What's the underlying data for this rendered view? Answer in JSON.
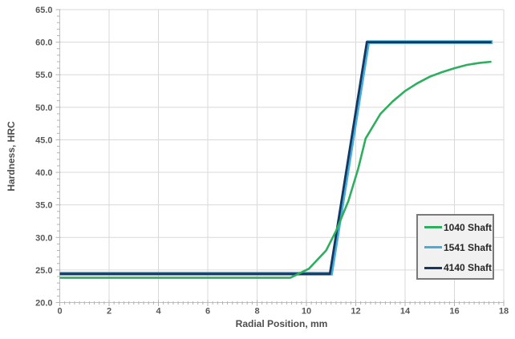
{
  "chart_data": {
    "type": "line",
    "title": "",
    "xlabel": "Radial Position, mm",
    "ylabel": "Hardness, HRC",
    "xlim": [
      0,
      18
    ],
    "ylim": [
      20,
      65
    ],
    "x_tick_step": 2,
    "x_minor_step": 0.2,
    "y_tick_step": 5,
    "y_minor_step": 1,
    "x_tick_labels": [
      "0",
      "2",
      "4",
      "6",
      "8",
      "10",
      "12",
      "14",
      "16",
      "18"
    ],
    "y_tick_labels": [
      "20.0",
      "25.0",
      "30.0",
      "35.0",
      "40.0",
      "45.0",
      "50.0",
      "55.0",
      "60.0",
      "65.0"
    ],
    "grid": true,
    "legend_position": "right-middle",
    "colors": {
      "gridline": "#d9d9d9",
      "axis": "#bfbfbf",
      "tick": "#b3b3b3",
      "tick_label": "#595959",
      "axis_title": "#4d4d4d",
      "legend_bg": "#f1f1f1",
      "legend_border": "#7a7a7a",
      "legend_text": "#262626"
    },
    "series": [
      {
        "name": "1040 Shaft",
        "color": "#2EAE5F",
        "points": [
          [
            0,
            23.8
          ],
          [
            9.35,
            23.8
          ],
          [
            10.1,
            25.2
          ],
          [
            10.8,
            28.0
          ],
          [
            11.2,
            31.0
          ],
          [
            11.7,
            35.6
          ],
          [
            12.1,
            40.6
          ],
          [
            12.4,
            45.2
          ],
          [
            13.0,
            49.0
          ],
          [
            13.5,
            50.9
          ],
          [
            14.0,
            52.5
          ],
          [
            14.5,
            53.7
          ],
          [
            15.0,
            54.7
          ],
          [
            15.5,
            55.4
          ],
          [
            16.0,
            56.0
          ],
          [
            16.5,
            56.5
          ],
          [
            17.0,
            56.8
          ],
          [
            17.5,
            57.0
          ]
        ]
      },
      {
        "name": "1541 Shaft",
        "color": "#44AEDC",
        "points": [
          [
            0,
            24.45
          ],
          [
            11.0,
            24.45
          ],
          [
            12.5,
            60.0
          ],
          [
            17.55,
            60.0
          ]
        ]
      },
      {
        "name": "4140 Shaft",
        "color": "#17375E",
        "points": [
          [
            0,
            24.4
          ],
          [
            10.95,
            24.4
          ],
          [
            12.45,
            60.0
          ],
          [
            17.5,
            60.0
          ]
        ]
      }
    ]
  }
}
